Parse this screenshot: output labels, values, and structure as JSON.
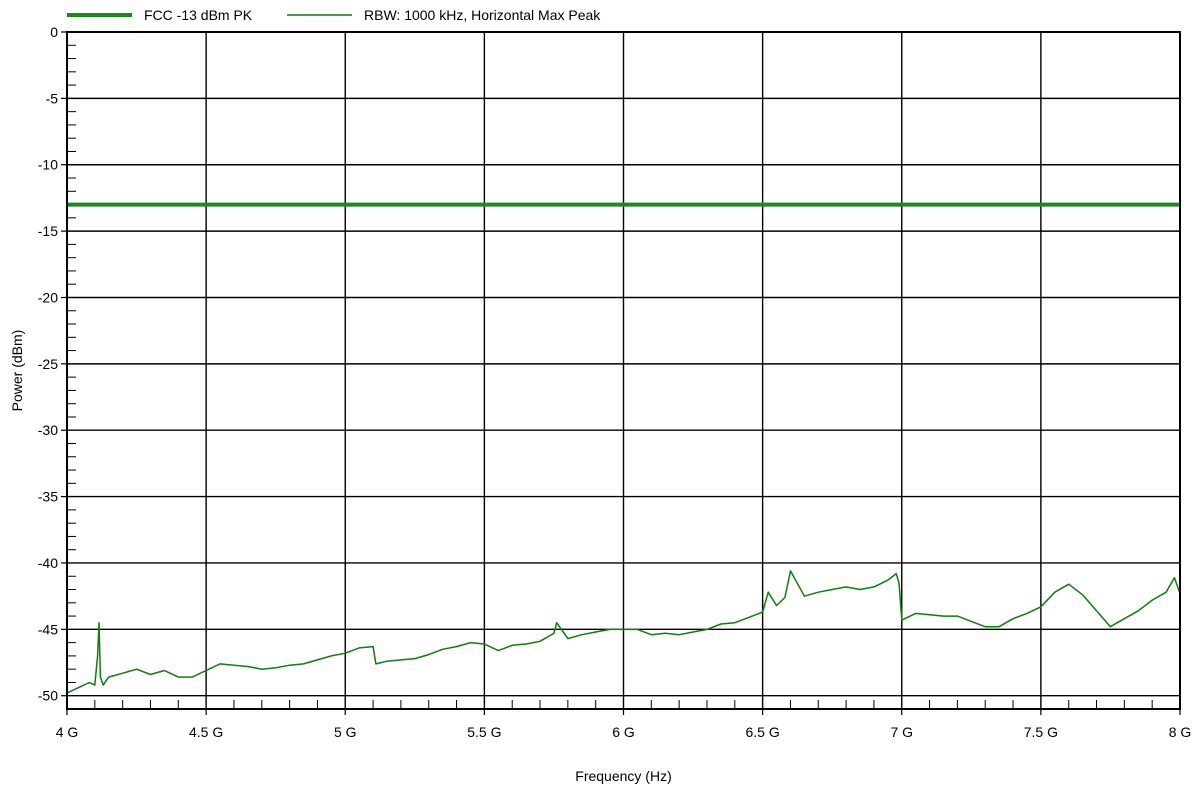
{
  "chart_data": {
    "type": "line",
    "title": "",
    "xlabel": "Frequency (Hz)",
    "ylabel": "Power (dBm)",
    "xlim": [
      4000000000,
      8000000000
    ],
    "ylim": [
      -51,
      0
    ],
    "x_ticks": [
      {
        "value": 4000000000,
        "label": "4 G"
      },
      {
        "value": 4500000000,
        "label": "4.5 G"
      },
      {
        "value": 5000000000,
        "label": "5 G"
      },
      {
        "value": 5500000000,
        "label": "5.5 G"
      },
      {
        "value": 6000000000,
        "label": "6 G"
      },
      {
        "value": 6500000000,
        "label": "6.5 G"
      },
      {
        "value": 7000000000,
        "label": "7 G"
      },
      {
        "value": 7500000000,
        "label": "7.5 G"
      },
      {
        "value": 8000000000,
        "label": "8 G"
      }
    ],
    "y_ticks": [
      {
        "value": 0,
        "label": "0"
      },
      {
        "value": -5,
        "label": "-5"
      },
      {
        "value": -10,
        "label": "-10"
      },
      {
        "value": -15,
        "label": "-15"
      },
      {
        "value": -20,
        "label": "-20"
      },
      {
        "value": -25,
        "label": "-25"
      },
      {
        "value": -30,
        "label": "-30"
      },
      {
        "value": -35,
        "label": "-35"
      },
      {
        "value": -40,
        "label": "-40"
      },
      {
        "value": -45,
        "label": "-45"
      },
      {
        "value": -50,
        "label": "-50"
      }
    ],
    "grid": true,
    "legend_position": "top-left, above plot",
    "colors": {
      "limit": "#1a8a1a",
      "trace": "#0d7f0d",
      "grid": "#000000"
    },
    "series": [
      {
        "name": "FCC -13 dBm PK",
        "style": "thick",
        "x": [
          4000000000,
          8000000000
        ],
        "y": [
          -13,
          -13
        ]
      },
      {
        "name": "RBW: 1000 kHz, Horizontal Max Peak",
        "style": "thin",
        "x": [
          4000000000,
          4050000000,
          4080000000,
          4100000000,
          4110000000,
          4115000000,
          4120000000,
          4130000000,
          4150000000,
          4200000000,
          4250000000,
          4300000000,
          4350000000,
          4400000000,
          4450000000,
          4500000000,
          4550000000,
          4600000000,
          4650000000,
          4700000000,
          4750000000,
          4800000000,
          4850000000,
          4900000000,
          4950000000,
          5000000000,
          5050000000,
          5100000000,
          5110000000,
          5150000000,
          5200000000,
          5250000000,
          5300000000,
          5350000000,
          5400000000,
          5450000000,
          5500000000,
          5550000000,
          5600000000,
          5650000000,
          5700000000,
          5750000000,
          5760000000,
          5800000000,
          5850000000,
          5900000000,
          5950000000,
          6000000000,
          6050000000,
          6100000000,
          6150000000,
          6200000000,
          6250000000,
          6300000000,
          6350000000,
          6400000000,
          6450000000,
          6500000000,
          6520000000,
          6550000000,
          6580000000,
          6600000000,
          6650000000,
          6700000000,
          6750000000,
          6800000000,
          6850000000,
          6900000000,
          6950000000,
          6980000000,
          6990000000,
          7000000000,
          7050000000,
          7100000000,
          7150000000,
          7200000000,
          7250000000,
          7300000000,
          7350000000,
          7400000000,
          7450000000,
          7500000000,
          7550000000,
          7600000000,
          7650000000,
          7700000000,
          7750000000,
          7800000000,
          7850000000,
          7900000000,
          7950000000,
          7980000000,
          8000000000
        ],
        "y": [
          -49.8,
          -49.3,
          -49.0,
          -49.2,
          -47.0,
          -44.5,
          -48.6,
          -49.2,
          -48.6,
          -48.3,
          -48.0,
          -48.4,
          -48.1,
          -48.6,
          -48.6,
          -48.1,
          -47.6,
          -47.7,
          -47.8,
          -48.0,
          -47.9,
          -47.7,
          -47.6,
          -47.3,
          -47.0,
          -46.8,
          -46.4,
          -46.3,
          -47.6,
          -47.4,
          -47.3,
          -47.2,
          -46.9,
          -46.5,
          -46.3,
          -46.0,
          -46.1,
          -46.6,
          -46.2,
          -46.1,
          -45.9,
          -45.3,
          -44.5,
          -45.7,
          -45.4,
          -45.2,
          -45.0,
          -45.0,
          -45.0,
          -45.4,
          -45.3,
          -45.4,
          -45.2,
          -45.0,
          -44.6,
          -44.5,
          -44.1,
          -43.7,
          -42.2,
          -43.2,
          -42.6,
          -40.6,
          -42.5,
          -42.2,
          -42.0,
          -41.8,
          -42.0,
          -41.8,
          -41.3,
          -40.8,
          -41.5,
          -44.3,
          -43.8,
          -43.9,
          -44.0,
          -44.0,
          -44.4,
          -44.8,
          -44.8,
          -44.2,
          -43.8,
          -43.3,
          -42.2,
          -41.6,
          -42.4,
          -43.6,
          -44.8,
          -44.2,
          -43.6,
          -42.8,
          -42.2,
          -41.1,
          -42.3
        ]
      }
    ]
  }
}
